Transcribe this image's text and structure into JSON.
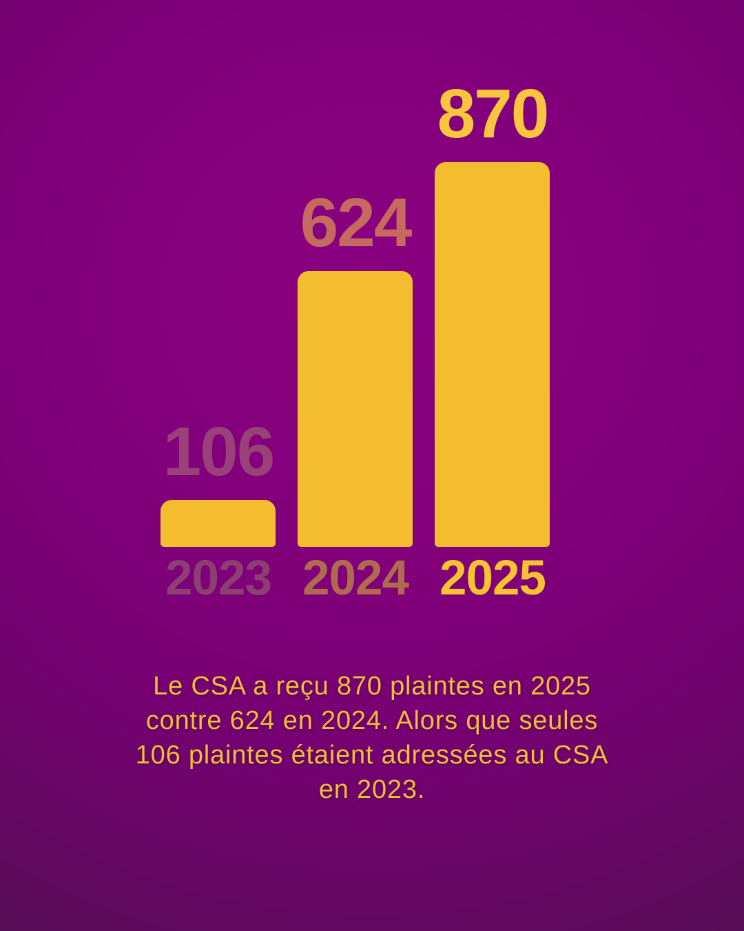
{
  "chart_data": {
    "type": "bar",
    "categories": [
      "2023",
      "2024",
      "2025"
    ],
    "values": [
      106,
      624,
      870
    ],
    "title": "",
    "xlabel": "",
    "ylabel": "",
    "ylim": [
      0,
      870
    ],
    "grid": false,
    "legend": false,
    "data_labels": [
      "106",
      "624",
      "870"
    ],
    "bar_color": "#f3bd2f",
    "annotation": "Le CSA a reçu 870 plaintes en 2025 contre 624 en 2024. Alors que seules 106 plaintes étaient adressées au CSA en 2023."
  },
  "chart": {
    "bar_fill": "#f3bd2f",
    "bars": [
      {
        "year": "2023",
        "value": "106",
        "value_color": "#9a4179",
        "year_color": "#8d3f73"
      },
      {
        "year": "2024",
        "value": "624",
        "value_color": "#c6695f",
        "year_color": "#b06b4e"
      },
      {
        "year": "2025",
        "value": "870",
        "value_color": "#f7c63c",
        "year_color": "#f5c32f"
      }
    ]
  },
  "caption": {
    "text_color": "#f2bc38",
    "lines": [
      "Le CSA a reçu 870 plaintes en 2025",
      "contre 624 en 2024. Alors que seules",
      "106 plaintes étaient adressées au CSA",
      "en 2023."
    ]
  },
  "background": {
    "top": "#8a0080",
    "bottom": "#36193a"
  }
}
